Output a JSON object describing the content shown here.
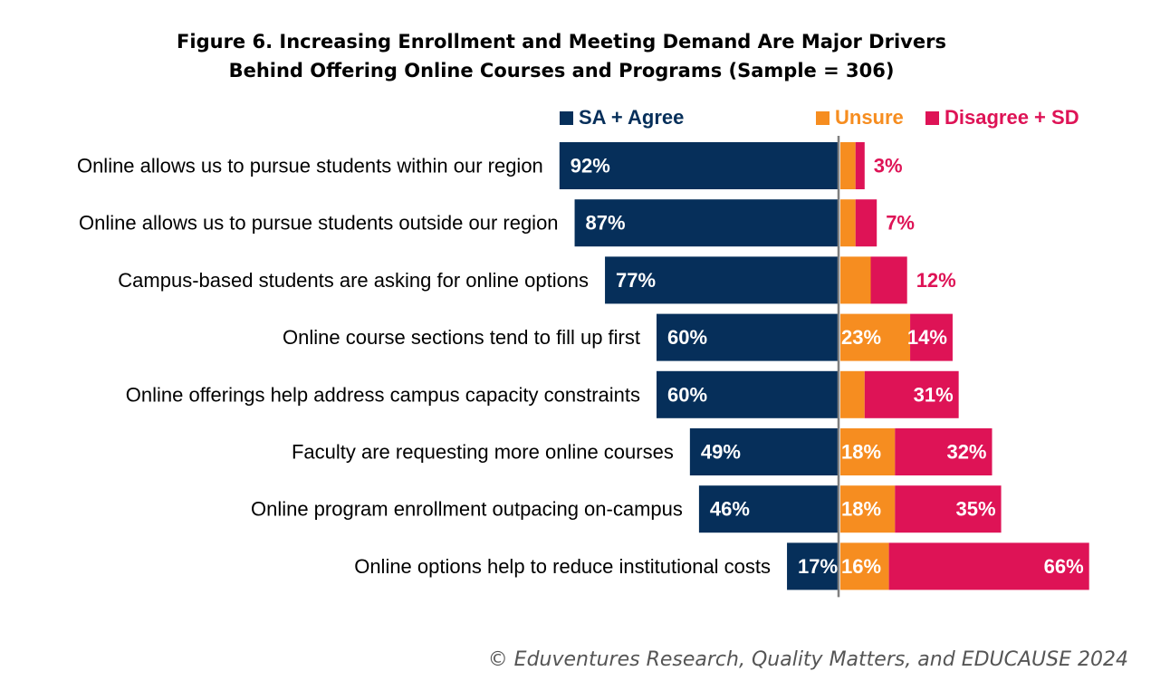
{
  "title_line1": "Figure 6. Increasing Enrollment and Meeting Demand Are Major Drivers",
  "title_line2": "Behind Offering Online Courses and Programs (Sample = 306)",
  "footer": "© Eduventures Research, Quality Matters, and EDUCAUSE 2024",
  "chart_data": {
    "type": "bar",
    "orientation": "horizontal diverging stacked",
    "legend_placement": "top",
    "categories": [
      "Online allows us to pursue students within our region",
      "Online allows us to pursue students outside our region",
      "Campus-based students are asking for online options",
      "Online course sections tend to fill up first",
      "Online offerings help address campus capacity constraints",
      "Faculty are requesting more online courses",
      "Online program enrollment outpacing on-campus",
      "Online options help to reduce institutional costs"
    ],
    "series": [
      {
        "name": "SA + Agree",
        "color": "#062f5a",
        "values": [
          92,
          87,
          77,
          60,
          60,
          49,
          46,
          17
        ],
        "labels": [
          "92%",
          "87%",
          "77%",
          "60%",
          "60%",
          "49%",
          "46%",
          "17%"
        ]
      },
      {
        "name": "Unsure",
        "color": "#f68d20",
        "values": [
          5,
          5,
          10,
          23,
          8,
          18,
          18,
          16
        ],
        "labels": [
          null,
          null,
          null,
          "23%",
          null,
          "18%",
          "18%",
          "16%"
        ]
      },
      {
        "name": "Disagree + SD",
        "color": "#de1356",
        "values": [
          3,
          7,
          12,
          14,
          31,
          32,
          35,
          66
        ],
        "labels": [
          "3%",
          "7%",
          "12%",
          "14%",
          "31%",
          "32%",
          "35%",
          "66%"
        ]
      }
    ],
    "axis_color": "#7f7f7f"
  }
}
